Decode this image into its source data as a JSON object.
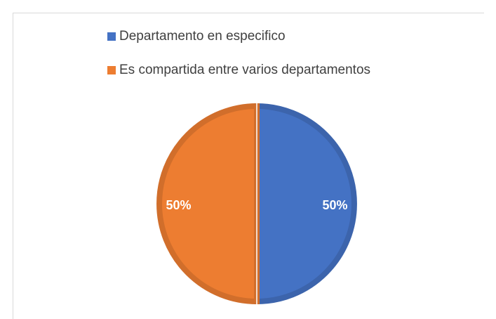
{
  "chart_data": {
    "type": "pie",
    "categories": [
      "Departamento en especifico",
      "Es compartida entre varios departamentos"
    ],
    "values": [
      50,
      50
    ],
    "value_labels": [
      "50%",
      "50%"
    ],
    "colors": [
      "#4472c4",
      "#ed7d31"
    ],
    "legend": "top"
  }
}
